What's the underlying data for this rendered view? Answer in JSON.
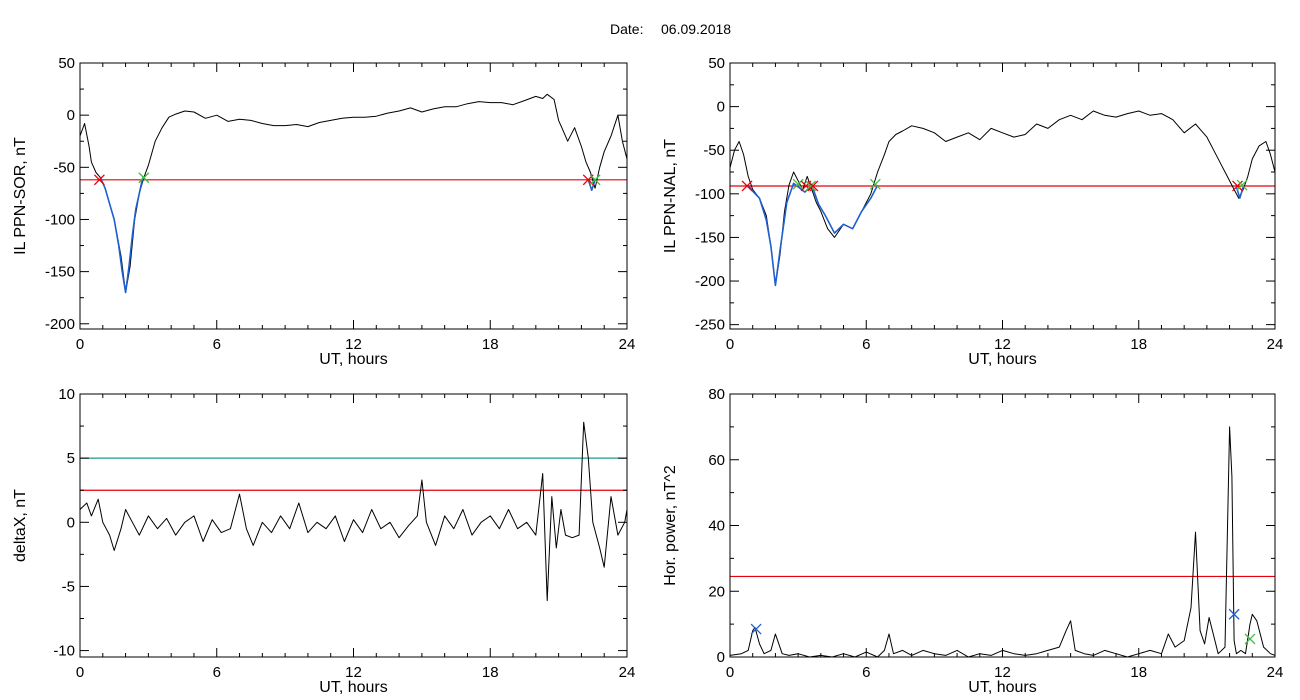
{
  "date_label": "Date:",
  "date_value": "06.09.2018",
  "chart_data": [
    {
      "type": "line",
      "id": "sor",
      "xlabel": "UT, hours",
      "ylabel": "IL PPN-SOR, nT",
      "xlim": [
        0,
        24
      ],
      "ylim": [
        -205,
        50
      ],
      "xticks": [
        0,
        6,
        12,
        18,
        24
      ],
      "yticks": [
        50,
        0,
        -50,
        -100,
        -150,
        -200
      ],
      "threshold": {
        "value": -62,
        "color": "#e8000b"
      },
      "series": [
        {
          "color": "#000000",
          "x": [
            0,
            0.2,
            0.4,
            0.5,
            0.7,
            0.9,
            1.1,
            1.5,
            1.8,
            2.0,
            2.2,
            2.4,
            2.6,
            2.8,
            3.0,
            3.3,
            3.6,
            3.9,
            4.2,
            4.6,
            5,
            5.5,
            6,
            6.5,
            7,
            7.5,
            8,
            8.5,
            9,
            9.5,
            10,
            10.5,
            11,
            11.5,
            12,
            12.5,
            13,
            13.5,
            14,
            14.5,
            15,
            15.5,
            16,
            16.5,
            17,
            17.5,
            18,
            18.5,
            19,
            19.5,
            20,
            20.3,
            20.5,
            20.8,
            21.0,
            21.2,
            21.4,
            21.7,
            22.0,
            22.2,
            22.4,
            22.6,
            22.8,
            23.0,
            23.3,
            23.6,
            23.8,
            24.0
          ],
          "y": [
            -20,
            -8,
            -30,
            -45,
            -55,
            -60,
            -70,
            -100,
            -135,
            -170,
            -145,
            -100,
            -75,
            -60,
            -48,
            -25,
            -12,
            -2,
            1,
            4,
            3,
            -3,
            0,
            -6,
            -4,
            -5,
            -8,
            -10,
            -10,
            -9,
            -11,
            -7,
            -5,
            -3,
            -2,
            -2,
            -1,
            2,
            4,
            7,
            3,
            6,
            8,
            8,
            11,
            13,
            12,
            12,
            10,
            14,
            18,
            16,
            20,
            15,
            -5,
            -15,
            -25,
            -12,
            -30,
            -45,
            -55,
            -70,
            -50,
            -35,
            -20,
            0,
            -25,
            -42
          ]
        },
        {
          "color": "#1f5fd1",
          "x": [
            0.9,
            1.1,
            1.3,
            1.5,
            1.7,
            1.85,
            2.0,
            2.15,
            2.3,
            2.45,
            2.6,
            2.75
          ],
          "y": [
            -60,
            -70,
            -85,
            -100,
            -125,
            -150,
            -170,
            -145,
            -115,
            -90,
            -75,
            -60
          ]
        },
        {
          "color": "#1f5fd1",
          "x": [
            22.3,
            22.45,
            22.6
          ],
          "y": [
            -62,
            -72,
            -62
          ]
        }
      ],
      "markers": [
        {
          "x": 0.85,
          "y": -62,
          "color": "#e8000b"
        },
        {
          "x": 2.8,
          "y": -60,
          "color": "#3fbf3f"
        },
        {
          "x": 22.3,
          "y": -62,
          "color": "#e8000b"
        },
        {
          "x": 22.6,
          "y": -62,
          "color": "#3fbf3f"
        }
      ]
    },
    {
      "type": "line",
      "id": "nal",
      "xlabel": "UT, hours",
      "ylabel": "IL PPN-NAL, nT",
      "xlim": [
        0,
        24
      ],
      "ylim": [
        -255,
        50
      ],
      "xticks": [
        0,
        6,
        12,
        18,
        24
      ],
      "yticks": [
        50,
        0,
        -50,
        -100,
        -150,
        -200,
        -250
      ],
      "threshold": {
        "value": -91,
        "color": "#e8000b"
      },
      "series": [
        {
          "color": "#000000",
          "x": [
            0,
            0.2,
            0.4,
            0.6,
            0.8,
            1.0,
            1.3,
            1.6,
            1.8,
            2.0,
            2.2,
            2.4,
            2.6,
            2.8,
            3.0,
            3.2,
            3.4,
            3.6,
            3.8,
            4.0,
            4.3,
            4.6,
            5.0,
            5.4,
            5.8,
            6.2,
            6.5,
            6.8,
            7.0,
            7.3,
            7.6,
            8,
            8.5,
            9,
            9.5,
            10,
            10.5,
            11,
            11.5,
            12,
            12.5,
            13,
            13.5,
            14,
            14.5,
            15,
            15.5,
            16,
            16.5,
            17,
            17.5,
            18,
            18.5,
            19,
            19.5,
            20,
            20.5,
            21,
            21.3,
            21.6,
            21.9,
            22.2,
            22.4,
            22.6,
            22.8,
            23.0,
            23.3,
            23.6,
            23.8,
            24.0
          ],
          "y": [
            -70,
            -50,
            -40,
            -55,
            -80,
            -95,
            -105,
            -125,
            -160,
            -205,
            -170,
            -120,
            -90,
            -75,
            -85,
            -95,
            -80,
            -95,
            -110,
            -120,
            -140,
            -150,
            -135,
            -140,
            -120,
            -100,
            -75,
            -55,
            -40,
            -32,
            -28,
            -22,
            -25,
            -30,
            -40,
            -35,
            -30,
            -38,
            -25,
            -30,
            -35,
            -32,
            -20,
            -25,
            -15,
            -10,
            -15,
            -5,
            -10,
            -12,
            -8,
            -5,
            -10,
            -8,
            -15,
            -30,
            -20,
            -35,
            -50,
            -65,
            -80,
            -95,
            -105,
            -95,
            -80,
            -60,
            -45,
            -40,
            -55,
            -75
          ]
        },
        {
          "color": "#1f5fd1",
          "x": [
            0.8,
            1.0,
            1.3,
            1.6,
            1.8,
            2.0,
            2.2,
            2.5,
            2.8,
            3.0,
            3.3,
            3.6,
            3.9,
            4.2,
            4.6,
            5.0,
            5.4,
            5.8,
            6.2,
            6.5
          ],
          "y": [
            -90,
            -97,
            -105,
            -130,
            -160,
            -205,
            -165,
            -110,
            -88,
            -92,
            -98,
            -90,
            -112,
            -125,
            -145,
            -135,
            -140,
            -120,
            -105,
            -90
          ]
        },
        {
          "color": "#1f5fd1",
          "x": [
            22.3,
            22.45,
            22.6
          ],
          "y": [
            -92,
            -105,
            -92
          ]
        }
      ],
      "markers": [
        {
          "x": 0.75,
          "y": -91,
          "color": "#e8000b"
        },
        {
          "x": 3.0,
          "y": -89,
          "color": "#3fbf3f"
        },
        {
          "x": 3.35,
          "y": -91,
          "color": "#e8000b"
        },
        {
          "x": 3.55,
          "y": -91,
          "color": "#3fbf3f"
        },
        {
          "x": 3.65,
          "y": -91,
          "color": "#e8000b"
        },
        {
          "x": 6.4,
          "y": -89,
          "color": "#3fbf3f"
        },
        {
          "x": 22.35,
          "y": -91,
          "color": "#e8000b"
        },
        {
          "x": 22.55,
          "y": -90,
          "color": "#3fbf3f"
        }
      ]
    },
    {
      "type": "line",
      "id": "deltax",
      "xlabel": "UT, hours",
      "ylabel": "deltaX, nT",
      "xlim": [
        0,
        24
      ],
      "ylim": [
        -10.5,
        10
      ],
      "xticks": [
        0,
        6,
        12,
        18,
        24
      ],
      "yticks": [
        10,
        5,
        0,
        -5,
        -10
      ],
      "threshold": {
        "value": 2.5,
        "color": "#e8000b"
      },
      "threshold2": {
        "value": 5,
        "color": "#1b9e8c"
      },
      "series": [
        {
          "color": "#000000",
          "x": [
            0,
            0.3,
            0.5,
            0.8,
            1.0,
            1.3,
            1.5,
            1.8,
            2.0,
            2.3,
            2.6,
            3.0,
            3.4,
            3.8,
            4.2,
            4.6,
            5.0,
            5.4,
            5.8,
            6.2,
            6.6,
            7.0,
            7.3,
            7.6,
            8.0,
            8.4,
            8.8,
            9.2,
            9.6,
            10.0,
            10.4,
            10.8,
            11.2,
            11.6,
            12.0,
            12.4,
            12.8,
            13.2,
            13.6,
            14.0,
            14.4,
            14.8,
            15.0,
            15.2,
            15.6,
            16.0,
            16.4,
            16.8,
            17.2,
            17.6,
            18.0,
            18.4,
            18.8,
            19.2,
            19.6,
            20.0,
            20.3,
            20.5,
            20.7,
            20.9,
            21.1,
            21.3,
            21.6,
            21.9,
            22.1,
            22.3,
            22.5,
            22.8,
            23.0,
            23.3,
            23.6,
            23.9,
            24.0
          ],
          "y": [
            1,
            1.5,
            0.5,
            1.8,
            0,
            -1,
            -2.2,
            -0.5,
            1,
            0,
            -1,
            0.5,
            -0.5,
            0.3,
            -1,
            0,
            0.5,
            -1.5,
            0.2,
            -0.8,
            -0.5,
            2.2,
            -0.5,
            -1.8,
            0,
            -0.8,
            0.5,
            -0.5,
            1.5,
            -0.8,
            0,
            -0.5,
            0.5,
            -1.5,
            0.2,
            -0.8,
            1,
            -0.5,
            0,
            -1.2,
            -0.3,
            0.5,
            3.3,
            0,
            -1.8,
            0.5,
            -0.5,
            1,
            -1,
            0,
            0.5,
            -0.5,
            1,
            -0.5,
            0,
            -1,
            3.8,
            -6.1,
            2,
            -2,
            1,
            -1,
            -1.2,
            -1,
            7.8,
            5,
            0,
            -2,
            -3.5,
            2,
            -1,
            0,
            1
          ]
        }
      ],
      "markers": []
    },
    {
      "type": "line",
      "id": "horpower",
      "xlabel": "UT, hours",
      "ylabel": "Hor. power, nT^2",
      "xlim": [
        0,
        24
      ],
      "ylim": [
        0,
        80
      ],
      "xticks": [
        0,
        6,
        12,
        18,
        24
      ],
      "yticks": [
        80,
        60,
        40,
        20,
        0
      ],
      "threshold": {
        "value": 24.5,
        "color": "#e8000b"
      },
      "series": [
        {
          "color": "#000000",
          "x": [
            0,
            0.5,
            0.8,
            1.0,
            1.1,
            1.3,
            1.5,
            1.8,
            2.0,
            2.3,
            2.6,
            3.0,
            3.5,
            4.0,
            4.5,
            5.0,
            5.5,
            6.0,
            6.5,
            6.8,
            7.0,
            7.2,
            7.6,
            8.0,
            8.5,
            9.0,
            9.5,
            10,
            10.5,
            11,
            11.5,
            12,
            12.5,
            13,
            13.5,
            14,
            14.5,
            14.8,
            15.0,
            15.2,
            15.6,
            16,
            16.5,
            17,
            17.5,
            18,
            18.5,
            19.0,
            19.3,
            19.6,
            20.0,
            20.3,
            20.5,
            20.7,
            20.9,
            21.1,
            21.5,
            21.8,
            22.0,
            22.1,
            22.2,
            22.3,
            22.5,
            22.7,
            22.9,
            23.0,
            23.2,
            23.5,
            23.8,
            24.0
          ],
          "y": [
            0.5,
            1,
            2,
            8,
            9,
            4,
            1,
            2,
            7,
            1,
            0.5,
            1,
            0,
            0.5,
            0,
            1,
            0,
            1.5,
            0,
            2,
            7,
            1,
            2,
            0.5,
            2,
            1,
            0.5,
            2,
            0,
            1,
            0.5,
            2,
            1,
            0.5,
            1,
            2,
            3,
            8,
            11,
            2,
            1,
            0.5,
            2,
            1,
            0,
            1,
            2,
            1,
            7,
            3,
            5,
            15,
            38,
            8,
            4,
            12,
            1,
            3,
            70,
            55,
            5,
            1,
            2,
            1,
            10,
            13,
            11,
            3,
            1,
            0.5
          ]
        }
      ],
      "markers": [
        {
          "x": 1.15,
          "y": 8.5,
          "color": "#1f5fd1"
        },
        {
          "x": 22.2,
          "y": 13,
          "color": "#1f5fd1"
        },
        {
          "x": 22.9,
          "y": 5.5,
          "color": "#3fbf3f"
        }
      ]
    }
  ]
}
